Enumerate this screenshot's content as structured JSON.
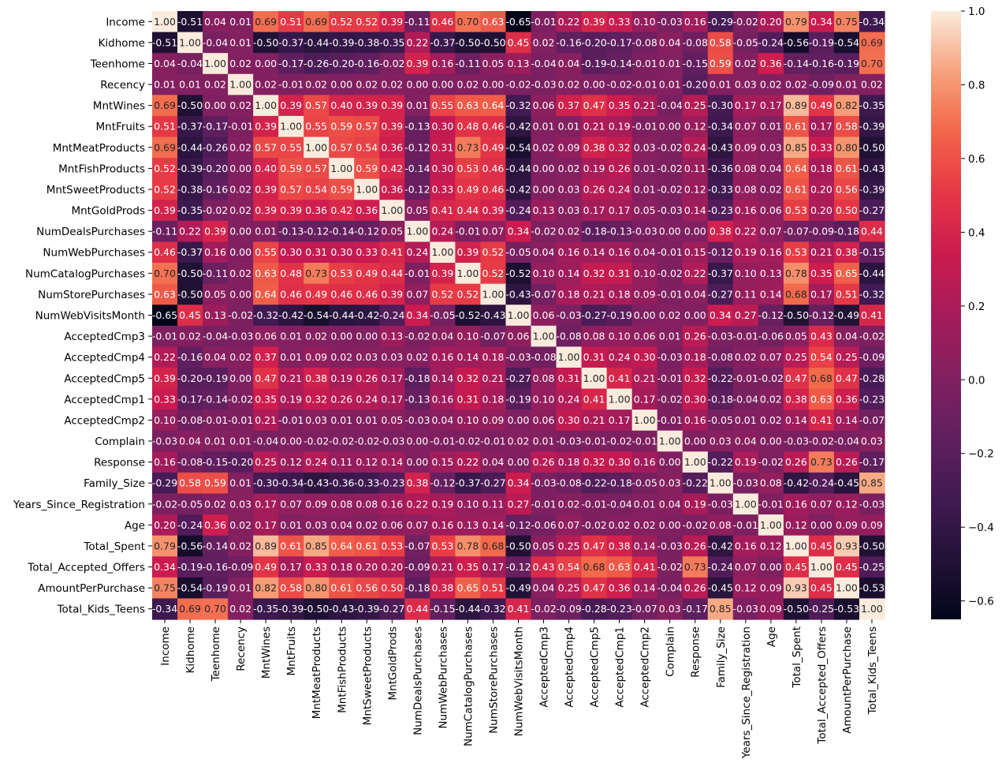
{
  "chart_data": {
    "type": "heatmap",
    "title": "",
    "xlabel": "",
    "ylabel": "",
    "labels": [
      "Income",
      "Kidhome",
      "Teenhome",
      "Recency",
      "MntWines",
      "MntFruits",
      "MntMeatProducts",
      "MntFishProducts",
      "MntSweetProducts",
      "MntGoldProds",
      "NumDealsPurchases",
      "NumWebPurchases",
      "NumCatalogPurchases",
      "NumStorePurchases",
      "NumWebVisitsMonth",
      "AcceptedCmp3",
      "AcceptedCmp4",
      "AcceptedCmp5",
      "AcceptedCmp1",
      "AcceptedCmp2",
      "Complain",
      "Response",
      "Family_Size",
      "Years_Since_Registration",
      "Age",
      "Total_Spent",
      "Total_Accepted_Offers",
      "AmountPerPurchase",
      "Total_Kids_Teens"
    ],
    "matrix": [
      [
        1.0,
        -0.51,
        0.04,
        0.01,
        0.69,
        0.51,
        0.69,
        0.52,
        0.52,
        0.39,
        -0.11,
        0.46,
        0.7,
        0.63,
        -0.65,
        -0.01,
        0.22,
        0.39,
        0.33,
        0.1,
        -0.03,
        0.16,
        -0.29,
        -0.02,
        0.2,
        0.79,
        0.34,
        0.75,
        -0.34
      ],
      [
        -0.51,
        1.0,
        -0.04,
        0.01,
        -0.5,
        -0.37,
        -0.44,
        -0.39,
        -0.38,
        -0.35,
        0.22,
        -0.37,
        -0.5,
        -0.5,
        0.45,
        0.02,
        -0.16,
        -0.2,
        -0.17,
        -0.08,
        0.04,
        -0.08,
        0.58,
        -0.05,
        -0.24,
        -0.56,
        -0.19,
        -0.54,
        0.69
      ],
      [
        0.04,
        -0.04,
        1.0,
        0.02,
        0.0,
        -0.17,
        -0.26,
        -0.2,
        -0.16,
        -0.02,
        0.39,
        0.16,
        -0.11,
        0.05,
        0.13,
        -0.04,
        0.04,
        -0.19,
        -0.14,
        -0.01,
        0.01,
        -0.15,
        0.59,
        0.02,
        0.36,
        -0.14,
        -0.16,
        -0.19,
        0.7
      ],
      [
        0.01,
        0.01,
        0.02,
        1.0,
        0.02,
        -0.01,
        0.02,
        -0.0,
        0.02,
        0.02,
        0.0,
        -0.0,
        0.02,
        -0.0,
        -0.02,
        -0.03,
        0.02,
        -0.0,
        -0.02,
        -0.01,
        0.01,
        -0.2,
        0.01,
        0.03,
        0.02,
        0.02,
        -0.09,
        0.01,
        0.02
      ],
      [
        0.69,
        -0.5,
        0.0,
        0.02,
        1.0,
        0.39,
        0.57,
        0.4,
        0.39,
        0.39,
        0.01,
        0.55,
        0.63,
        0.64,
        -0.32,
        0.06,
        0.37,
        0.47,
        0.35,
        0.21,
        -0.04,
        0.25,
        -0.3,
        0.17,
        0.17,
        0.89,
        0.49,
        0.82,
        -0.35
      ],
      [
        0.51,
        -0.37,
        -0.17,
        -0.01,
        0.39,
        1.0,
        0.55,
        0.59,
        0.57,
        0.39,
        -0.13,
        0.3,
        0.48,
        0.46,
        -0.42,
        0.01,
        0.01,
        0.21,
        0.19,
        -0.01,
        -0.0,
        0.12,
        -0.34,
        0.07,
        0.01,
        0.61,
        0.17,
        0.58,
        -0.39
      ],
      [
        0.69,
        -0.44,
        -0.26,
        0.02,
        0.57,
        0.55,
        1.0,
        0.57,
        0.54,
        0.36,
        -0.12,
        0.31,
        0.73,
        0.49,
        -0.54,
        0.02,
        0.09,
        0.38,
        0.32,
        0.03,
        -0.02,
        0.24,
        -0.43,
        0.09,
        0.03,
        0.85,
        0.33,
        0.8,
        -0.5
      ],
      [
        0.52,
        -0.39,
        -0.2,
        -0.0,
        0.4,
        0.59,
        0.57,
        1.0,
        0.59,
        0.42,
        -0.14,
        0.3,
        0.53,
        0.46,
        -0.44,
        0.0,
        0.02,
        0.19,
        0.26,
        0.01,
        -0.02,
        0.11,
        -0.36,
        0.08,
        0.04,
        0.64,
        0.18,
        0.61,
        -0.43
      ],
      [
        0.52,
        -0.38,
        -0.16,
        0.02,
        0.39,
        0.57,
        0.54,
        0.59,
        1.0,
        0.36,
        -0.12,
        0.33,
        0.49,
        0.46,
        -0.42,
        0.0,
        0.03,
        0.26,
        0.24,
        0.01,
        -0.02,
        0.12,
        -0.33,
        0.08,
        0.02,
        0.61,
        0.2,
        0.56,
        -0.39
      ],
      [
        0.39,
        -0.35,
        -0.02,
        0.02,
        0.39,
        0.39,
        0.36,
        0.42,
        0.36,
        1.0,
        0.05,
        0.41,
        0.44,
        0.39,
        -0.24,
        0.13,
        0.03,
        0.17,
        0.17,
        0.05,
        -0.03,
        0.14,
        -0.23,
        0.16,
        0.06,
        0.53,
        0.2,
        0.5,
        -0.27
      ],
      [
        -0.11,
        0.22,
        0.39,
        0.0,
        0.01,
        -0.13,
        -0.12,
        -0.14,
        -0.12,
        0.05,
        1.0,
        0.24,
        -0.01,
        0.07,
        0.34,
        -0.02,
        0.02,
        -0.18,
        -0.13,
        -0.03,
        0.0,
        0.0,
        0.38,
        0.22,
        0.07,
        -0.07,
        -0.09,
        -0.18,
        0.44
      ],
      [
        0.46,
        -0.37,
        0.16,
        -0.0,
        0.55,
        0.3,
        0.31,
        0.3,
        0.33,
        0.41,
        0.24,
        1.0,
        0.39,
        0.52,
        -0.05,
        0.04,
        0.16,
        0.14,
        0.16,
        0.04,
        -0.01,
        0.15,
        -0.12,
        0.19,
        0.16,
        0.53,
        0.21,
        0.38,
        -0.15
      ],
      [
        0.7,
        -0.5,
        -0.11,
        0.02,
        0.63,
        0.48,
        0.73,
        0.53,
        0.49,
        0.44,
        -0.01,
        0.39,
        1.0,
        0.52,
        -0.52,
        0.1,
        0.14,
        0.32,
        0.31,
        0.1,
        -0.02,
        0.22,
        -0.37,
        0.1,
        0.13,
        0.78,
        0.35,
        0.65,
        -0.44
      ],
      [
        0.63,
        -0.5,
        0.05,
        -0.0,
        0.64,
        0.46,
        0.49,
        0.46,
        0.46,
        0.39,
        0.07,
        0.52,
        0.52,
        1.0,
        -0.43,
        -0.07,
        0.18,
        0.21,
        0.18,
        0.09,
        -0.01,
        0.04,
        -0.27,
        0.11,
        0.14,
        0.68,
        0.17,
        0.51,
        -0.32
      ],
      [
        -0.65,
        0.45,
        0.13,
        -0.02,
        -0.32,
        -0.42,
        -0.54,
        -0.44,
        -0.42,
        -0.24,
        0.34,
        -0.05,
        -0.52,
        -0.43,
        1.0,
        0.06,
        -0.03,
        -0.27,
        -0.19,
        -0.0,
        0.02,
        -0.0,
        0.34,
        0.27,
        -0.12,
        -0.5,
        -0.12,
        -0.49,
        0.41
      ],
      [
        -0.01,
        0.02,
        -0.04,
        -0.03,
        0.06,
        0.01,
        0.02,
        0.0,
        0.0,
        0.13,
        -0.02,
        0.04,
        0.1,
        -0.07,
        0.06,
        1.0,
        -0.08,
        0.08,
        0.1,
        0.06,
        0.01,
        0.26,
        -0.03,
        -0.01,
        -0.06,
        0.05,
        0.43,
        0.04,
        -0.02
      ],
      [
        0.22,
        -0.16,
        0.04,
        0.02,
        0.37,
        0.01,
        0.09,
        0.02,
        0.03,
        0.03,
        0.02,
        0.16,
        0.14,
        0.18,
        -0.03,
        -0.08,
        1.0,
        0.31,
        0.24,
        0.3,
        -0.03,
        0.18,
        -0.08,
        0.02,
        0.07,
        0.25,
        0.54,
        0.25,
        -0.09
      ],
      [
        0.39,
        -0.2,
        -0.19,
        -0.0,
        0.47,
        0.21,
        0.38,
        0.19,
        0.26,
        0.17,
        -0.18,
        0.14,
        0.32,
        0.21,
        -0.27,
        0.08,
        0.31,
        1.0,
        0.41,
        0.21,
        -0.01,
        0.32,
        -0.22,
        -0.01,
        -0.02,
        0.47,
        0.68,
        0.47,
        -0.28
      ],
      [
        0.33,
        -0.17,
        -0.14,
        -0.02,
        0.35,
        0.19,
        0.32,
        0.26,
        0.24,
        0.17,
        -0.13,
        0.16,
        0.31,
        0.18,
        -0.19,
        0.1,
        0.24,
        0.41,
        1.0,
        0.17,
        -0.02,
        0.3,
        -0.18,
        -0.04,
        0.02,
        0.38,
        0.63,
        0.36,
        -0.23
      ],
      [
        0.1,
        -0.08,
        -0.01,
        -0.01,
        0.21,
        -0.01,
        0.03,
        0.01,
        0.01,
        0.05,
        -0.03,
        0.04,
        0.1,
        0.09,
        -0.0,
        0.06,
        0.3,
        0.21,
        0.17,
        1.0,
        -0.01,
        0.16,
        -0.05,
        0.01,
        0.02,
        0.14,
        0.41,
        0.14,
        -0.07
      ],
      [
        -0.03,
        0.04,
        0.01,
        0.01,
        -0.04,
        -0.0,
        -0.02,
        -0.02,
        -0.02,
        -0.03,
        0.0,
        -0.01,
        -0.02,
        -0.01,
        0.02,
        0.01,
        -0.03,
        -0.01,
        -0.02,
        -0.01,
        1.0,
        0.0,
        0.03,
        0.04,
        0.0,
        -0.03,
        -0.02,
        -0.04,
        0.03
      ],
      [
        0.16,
        -0.08,
        -0.15,
        -0.2,
        0.25,
        0.12,
        0.24,
        0.11,
        0.12,
        0.14,
        0.0,
        0.15,
        0.22,
        0.04,
        -0.0,
        0.26,
        0.18,
        0.32,
        0.3,
        0.16,
        0.0,
        1.0,
        -0.22,
        0.19,
        -0.02,
        0.26,
        0.73,
        0.26,
        -0.17
      ],
      [
        -0.29,
        0.58,
        0.59,
        0.01,
        -0.3,
        -0.34,
        -0.43,
        -0.36,
        -0.33,
        -0.23,
        0.38,
        -0.12,
        -0.37,
        -0.27,
        0.34,
        -0.03,
        -0.08,
        -0.22,
        -0.18,
        -0.05,
        0.03,
        -0.22,
        1.0,
        -0.03,
        0.08,
        -0.42,
        -0.24,
        -0.45,
        0.85
      ],
      [
        -0.02,
        -0.05,
        0.02,
        0.03,
        0.17,
        0.07,
        0.09,
        0.08,
        0.08,
        0.16,
        0.22,
        0.19,
        0.1,
        0.11,
        0.27,
        -0.01,
        0.02,
        -0.01,
        -0.04,
        0.01,
        0.04,
        0.19,
        -0.03,
        1.0,
        -0.01,
        0.16,
        0.07,
        0.12,
        -0.03
      ],
      [
        0.2,
        -0.24,
        0.36,
        0.02,
        0.17,
        0.01,
        0.03,
        0.04,
        0.02,
        0.06,
        0.07,
        0.16,
        0.13,
        0.14,
        -0.12,
        -0.06,
        0.07,
        -0.02,
        0.02,
        0.02,
        0.0,
        -0.02,
        0.08,
        -0.01,
        1.0,
        0.12,
        -0.0,
        0.09,
        0.09
      ],
      [
        0.79,
        -0.56,
        -0.14,
        0.02,
        0.89,
        0.61,
        0.85,
        0.64,
        0.61,
        0.53,
        -0.07,
        0.53,
        0.78,
        0.68,
        -0.5,
        0.05,
        0.25,
        0.47,
        0.38,
        0.14,
        -0.03,
        0.26,
        -0.42,
        0.16,
        0.12,
        1.0,
        0.45,
        0.93,
        -0.5
      ],
      [
        0.34,
        -0.19,
        -0.16,
        -0.09,
        0.49,
        0.17,
        0.33,
        0.18,
        0.2,
        0.2,
        -0.09,
        0.21,
        0.35,
        0.17,
        -0.12,
        0.43,
        0.54,
        0.68,
        0.63,
        0.41,
        -0.02,
        0.73,
        -0.24,
        0.07,
        -0.0,
        0.45,
        1.0,
        0.45,
        -0.25
      ],
      [
        0.75,
        -0.54,
        -0.19,
        0.01,
        0.82,
        0.58,
        0.8,
        0.61,
        0.56,
        0.5,
        -0.18,
        0.38,
        0.65,
        0.51,
        -0.49,
        0.04,
        0.25,
        0.47,
        0.36,
        0.14,
        -0.04,
        0.26,
        -0.45,
        0.12,
        0.09,
        0.93,
        0.45,
        1.0,
        -0.53
      ],
      [
        -0.34,
        0.69,
        0.7,
        0.02,
        -0.35,
        -0.39,
        -0.5,
        -0.43,
        -0.39,
        -0.27,
        0.44,
        -0.15,
        -0.44,
        -0.32,
        0.41,
        -0.02,
        -0.09,
        -0.28,
        -0.23,
        -0.07,
        0.03,
        -0.17,
        0.85,
        -0.03,
        0.09,
        -0.5,
        -0.25,
        -0.53,
        1.0
      ]
    ],
    "vmin": -0.65,
    "vmax": 1.0,
    "colormap": "rocket",
    "annotation_format": "0.00",
    "colorbar_ticks": [
      -0.6,
      -0.4,
      -0.2,
      0.0,
      0.2,
      0.4,
      0.6,
      0.8,
      1.0
    ],
    "colorbar_tick_labels": [
      "−0.6",
      "−0.4",
      "−0.2",
      "0.0",
      "0.2",
      "0.4",
      "0.6",
      "0.8",
      "1.0"
    ],
    "legend_placement": "right"
  }
}
